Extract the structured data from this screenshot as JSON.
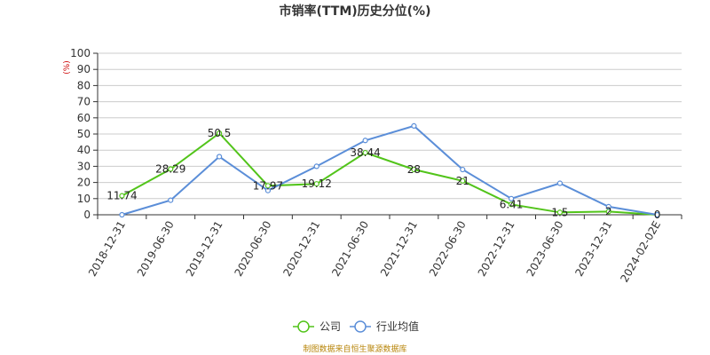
{
  "chart_data": {
    "type": "line",
    "title": "市销率(TTM)历史分位(%)",
    "ylabel": "(%)",
    "ylim": [
      0,
      100
    ],
    "yticks": [
      0,
      10,
      20,
      30,
      40,
      50,
      60,
      70,
      80,
      90,
      100
    ],
    "grid": true,
    "legend_position": "bottom-center",
    "categories": [
      "2018-12-31",
      "2019-06-30",
      "2019-12-31",
      "2020-06-30",
      "2020-12-31",
      "2021-06-30",
      "2021-12-31",
      "2022-06-30",
      "2022-12-31",
      "2023-06-30",
      "2023-12-31",
      "2024-02-02E"
    ],
    "series": [
      {
        "name": "公司",
        "color": "#52c41a",
        "values": [
          11.74,
          28.29,
          50.5,
          17.97,
          19.12,
          38.44,
          28,
          21,
          6.41,
          1.5,
          2,
          0
        ],
        "labels": [
          "11.74",
          "28.29",
          "50.5",
          "17.97",
          "19.12",
          "38.44",
          "28",
          "21",
          "6.41",
          "1.5",
          "2",
          "0"
        ]
      },
      {
        "name": "行业均值",
        "color": "#5b8ed8",
        "values": [
          0,
          9,
          36,
          15,
          30,
          46,
          55,
          28,
          10,
          19.5,
          5,
          0
        ]
      }
    ],
    "source": "制图数据来自恒生聚源数据库"
  }
}
